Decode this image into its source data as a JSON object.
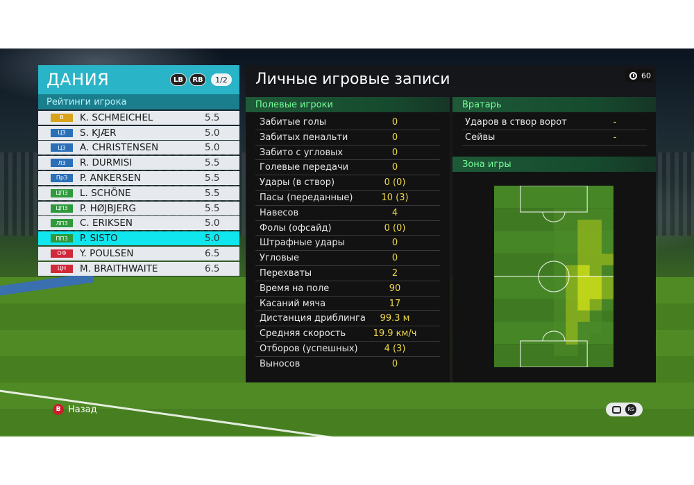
{
  "team": {
    "name": "ДАНИЯ",
    "lb_label": "LB",
    "rb_label": "RB",
    "page": "1/2",
    "ratings_header": "Рейтинги игрока",
    "players": [
      {
        "position": "В",
        "position_color": "#d8a21a",
        "name": "K. SCHMEICHEL",
        "rating": "5.5"
      },
      {
        "position": "ЦЗ",
        "position_color": "#2a6fb8",
        "name": "S. KJÆR",
        "rating": "5.0"
      },
      {
        "position": "ЦЗ",
        "position_color": "#2a6fb8",
        "name": "A. CHRISTENSEN",
        "rating": "5.0"
      },
      {
        "position": "ЛЗ",
        "position_color": "#2a6fb8",
        "name": "R. DURMISI",
        "rating": "5.5"
      },
      {
        "position": "ПрЗ",
        "position_color": "#2a6fb8",
        "name": "P. ANKERSEN",
        "rating": "5.5"
      },
      {
        "position": "ЦПЗ",
        "position_color": "#2e9a3c",
        "name": "L. SCHÖNE",
        "rating": "5.5"
      },
      {
        "position": "ЦПЗ",
        "position_color": "#2e9a3c",
        "name": "P. HØJBJERG",
        "rating": "5.5"
      },
      {
        "position": "ЛПЗ",
        "position_color": "#2e9a3c",
        "name": "C. ERIKSEN",
        "rating": "5.0"
      },
      {
        "position": "ППЗ",
        "position_color": "#2e9a3c",
        "name": "P. SISTO",
        "rating": "5.0",
        "selected": true
      },
      {
        "position": "ОФ",
        "position_color": "#d02a3a",
        "name": "Y. POULSEN",
        "rating": "6.5"
      },
      {
        "position": "ЦН",
        "position_color": "#d02a3a",
        "name": "M. BRAITHWAITE",
        "rating": "6.5"
      }
    ]
  },
  "records": {
    "title": "Личные игровые записи",
    "timer": "60",
    "field_header": "Полевые игроки",
    "goalkeeper_header": "Вратарь",
    "zone_header": "Зона игры",
    "field_stats": [
      {
        "label": "Забитые голы",
        "value": "0"
      },
      {
        "label": "Забитых пенальти",
        "value": "0"
      },
      {
        "label": "Забито с угловых",
        "value": "0"
      },
      {
        "label": "Голевые передачи",
        "value": "0"
      },
      {
        "label": "Удары (в створ)",
        "value": "0 (0)"
      },
      {
        "label": "Пасы (переданные)",
        "value": "10 (3)"
      },
      {
        "label": "Навесов",
        "value": "4"
      },
      {
        "label": "Фолы (офсайд)",
        "value": "0 (0)"
      },
      {
        "label": "Штрафные удары",
        "value": "0"
      },
      {
        "label": "Угловые",
        "value": "0"
      },
      {
        "label": "Перехваты",
        "value": "2"
      },
      {
        "label": "Время на поле",
        "value": "90"
      },
      {
        "label": "Касаний мяча",
        "value": "17"
      },
      {
        "label": "Дистанция дриблинга",
        "value": "99.3 м"
      },
      {
        "label": "Средняя скорость",
        "value": "19.9 км/ч"
      },
      {
        "label": "Отборов (успешных)",
        "value": "4 (3)"
      },
      {
        "label": "Выносов",
        "value": "0"
      }
    ],
    "goalkeeper_stats": [
      {
        "label": "Ударов в створ ворот",
        "value": "-"
      },
      {
        "label": "Сейвы",
        "value": "-"
      }
    ],
    "heatmap_colors": {
      "low": "#4f8c2a",
      "mid": "#8cb21e",
      "high": "#c4d81a"
    }
  },
  "hints": {
    "back_button": "B",
    "back_label": "Назад",
    "rs_label": "RS"
  }
}
